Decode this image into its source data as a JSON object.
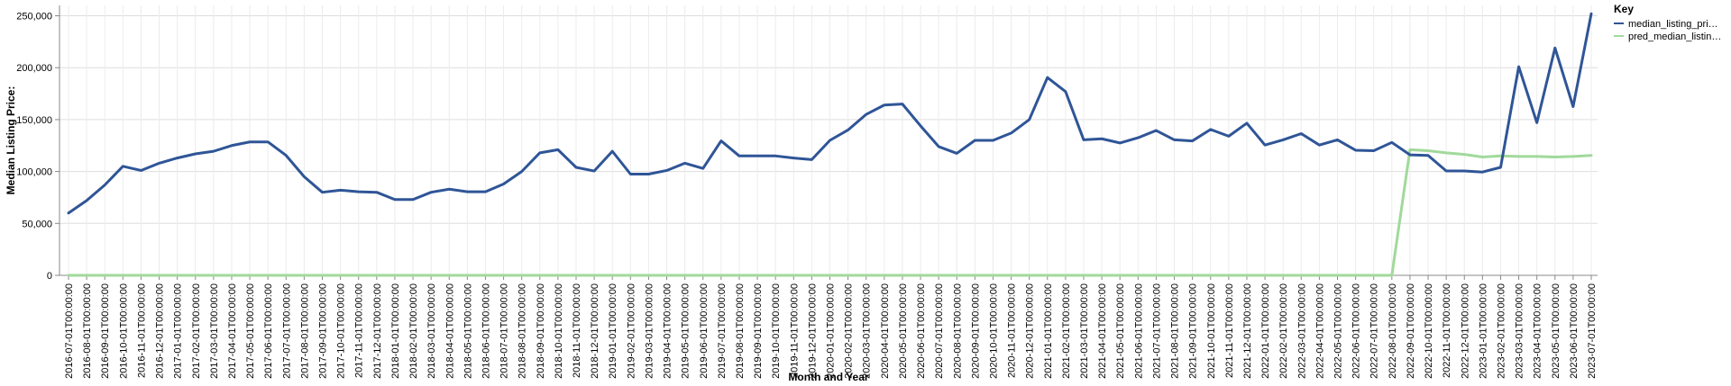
{
  "chart_data": {
    "type": "line",
    "xlabel": "Month and Year",
    "ylabel": "Median Listing Price:",
    "ylim": [
      0,
      260000
    ],
    "y_ticks": [
      0,
      50000,
      100000,
      150000,
      200000,
      250000
    ],
    "y_tick_labels": [
      "0",
      "50,000",
      "100,000",
      "150,000",
      "200,000",
      "250,000"
    ],
    "grid": true,
    "legend": {
      "title": "Key",
      "placement": "right"
    },
    "x": [
      "2016-07-01T00:00:00",
      "2016-08-01T00:00:00",
      "2016-09-01T00:00:00",
      "2016-10-01T00:00:00",
      "2016-11-01T00:00:00",
      "2016-12-01T00:00:00",
      "2017-01-01T00:00:00",
      "2017-02-01T00:00:00",
      "2017-03-01T00:00:00",
      "2017-04-01T00:00:00",
      "2017-05-01T00:00:00",
      "2017-06-01T00:00:00",
      "2017-07-01T00:00:00",
      "2017-08-01T00:00:00",
      "2017-09-01T00:00:00",
      "2017-10-01T00:00:00",
      "2017-11-01T00:00:00",
      "2017-12-01T00:00:00",
      "2018-01-01T00:00:00",
      "2018-02-01T00:00:00",
      "2018-03-01T00:00:00",
      "2018-04-01T00:00:00",
      "2018-05-01T00:00:00",
      "2018-06-01T00:00:00",
      "2018-07-01T00:00:00",
      "2018-08-01T00:00:00",
      "2018-09-01T00:00:00",
      "2018-10-01T00:00:00",
      "2018-11-01T00:00:00",
      "2018-12-01T00:00:00",
      "2019-01-01T00:00:00",
      "2019-02-01T00:00:00",
      "2019-03-01T00:00:00",
      "2019-04-01T00:00:00",
      "2019-05-01T00:00:00",
      "2019-06-01T00:00:00",
      "2019-07-01T00:00:00",
      "2019-08-01T00:00:00",
      "2019-09-01T00:00:00",
      "2019-10-01T00:00:00",
      "2019-11-01T00:00:00",
      "2019-12-01T00:00:00",
      "2020-01-01T00:00:00",
      "2020-02-01T00:00:00",
      "2020-03-01T00:00:00",
      "2020-04-01T00:00:00",
      "2020-05-01T00:00:00",
      "2020-06-01T00:00:00",
      "2020-07-01T00:00:00",
      "2020-08-01T00:00:00",
      "2020-09-01T00:00:00",
      "2020-10-01T00:00:00",
      "2020-11-01T00:00:00",
      "2020-12-01T00:00:00",
      "2021-01-01T00:00:00",
      "2021-02-01T00:00:00",
      "2021-03-01T00:00:00",
      "2021-04-01T00:00:00",
      "2021-05-01T00:00:00",
      "2021-06-01T00:00:00",
      "2021-07-01T00:00:00",
      "2021-08-01T00:00:00",
      "2021-09-01T00:00:00",
      "2021-10-01T00:00:00",
      "2021-11-01T00:00:00",
      "2021-12-01T00:00:00",
      "2022-01-01T00:00:00",
      "2022-02-01T00:00:00",
      "2022-03-01T00:00:00",
      "2022-04-01T00:00:00",
      "2022-05-01T00:00:00",
      "2022-06-01T00:00:00",
      "2022-07-01T00:00:00",
      "2022-08-01T00:00:00",
      "2022-09-01T00:00:00",
      "2022-10-01T00:00:00",
      "2022-11-01T00:00:00",
      "2022-12-01T00:00:00",
      "2023-01-01T00:00:00",
      "2023-02-01T00:00:00",
      "2023-03-01T00:00:00",
      "2023-04-01T00:00:00",
      "2023-05-01T00:00:00",
      "2023-06-01T00:00:00",
      "2023-07-01T00:00:00"
    ],
    "series": [
      {
        "name": "median_listing_pri…",
        "color": "#2f5597",
        "values": [
          60000,
          72000,
          87000,
          105000,
          101000,
          108000,
          113000,
          117000,
          119500,
          125000,
          128500,
          128500,
          115500,
          95000,
          80000,
          82000,
          80500,
          80000,
          73000,
          73000,
          80000,
          83000,
          80500,
          80500,
          88000,
          100000,
          118000,
          121000,
          104000,
          100500,
          119500,
          97500,
          97500,
          101000,
          108000,
          103000,
          129500,
          115000,
          115000,
          115000,
          113000,
          111500,
          130000,
          140000,
          155000,
          164000,
          165000,
          144000,
          124000,
          117500,
          130000,
          130000,
          137000,
          150000,
          190500,
          177000,
          130500,
          131500,
          127500,
          132500,
          139500,
          130500,
          129500,
          140500,
          134000,
          146500,
          125500,
          130500,
          136500,
          125500,
          130500,
          120500,
          120000,
          128000,
          116000,
          115500,
          100500,
          100500,
          99500,
          104000,
          201000,
          147000,
          219000,
          162500,
          252000
        ]
      },
      {
        "name": "pred_median_listin…",
        "color": "#a1d99b",
        "values": [
          0,
          0,
          0,
          0,
          0,
          0,
          0,
          0,
          0,
          0,
          0,
          0,
          0,
          0,
          0,
          0,
          0,
          0,
          0,
          0,
          0,
          0,
          0,
          0,
          0,
          0,
          0,
          0,
          0,
          0,
          0,
          0,
          0,
          0,
          0,
          0,
          0,
          0,
          0,
          0,
          0,
          0,
          0,
          0,
          0,
          0,
          0,
          0,
          0,
          0,
          0,
          0,
          0,
          0,
          0,
          0,
          0,
          0,
          0,
          0,
          0,
          0,
          0,
          0,
          0,
          0,
          0,
          0,
          0,
          0,
          0,
          0,
          0,
          0,
          121000,
          120000,
          118000,
          116500,
          114000,
          115000,
          114500,
          114500,
          114000,
          114500,
          115500
        ]
      }
    ]
  }
}
